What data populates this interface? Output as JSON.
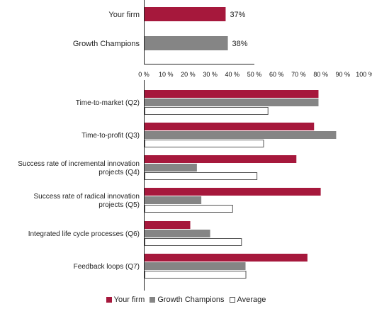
{
  "colors": {
    "your_firm": "#a6183c",
    "growth_champions": "#858585",
    "average": "#ffffff",
    "average_border": "#555555",
    "axis": "#222222"
  },
  "chart_data": [
    {
      "type": "bar",
      "orientation": "horizontal",
      "categories": [
        "Your firm",
        "Growth Champions"
      ],
      "values": [
        37,
        38
      ],
      "value_labels": [
        "37%",
        "38%"
      ],
      "xlim": [
        0,
        100
      ]
    },
    {
      "type": "bar",
      "orientation": "horizontal",
      "categories": [
        "Time-to-market (Q2)",
        "Time-to-profit (Q3)",
        "Success rate of incremental innovation projects (Q4)",
        "Success rate of radical innovation projects (Q5)",
        "Integrated life cycle processes (Q6)",
        "Feedback loops (Q7)"
      ],
      "category_lines": [
        [
          "Time-to-market (Q2)"
        ],
        [
          "Time-to-profit (Q3)"
        ],
        [
          "Success rate of incremental innovation",
          "projects (Q4)"
        ],
        [
          "Success rate of radical innovation",
          "projects (Q5)"
        ],
        [
          "Integrated life cycle processes (Q6)"
        ],
        [
          "Feedback loops (Q7)"
        ]
      ],
      "series": [
        {
          "name": "Your firm",
          "values": [
            79,
            77,
            69,
            80,
            21,
            74
          ]
        },
        {
          "name": "Growth Champions",
          "values": [
            79,
            87,
            24,
            26,
            30,
            46
          ]
        },
        {
          "name": "Average",
          "values": [
            56,
            54,
            51,
            40,
            44,
            46
          ]
        }
      ],
      "xlim": [
        0,
        100
      ],
      "ticks": [
        "0 %",
        "10 %",
        "20 %",
        "30 %",
        "40 %",
        "50 %",
        "60 %",
        "70 %",
        "80 %",
        "90 %",
        "100 %"
      ],
      "legend_position": "bottom",
      "grid": false
    }
  ]
}
